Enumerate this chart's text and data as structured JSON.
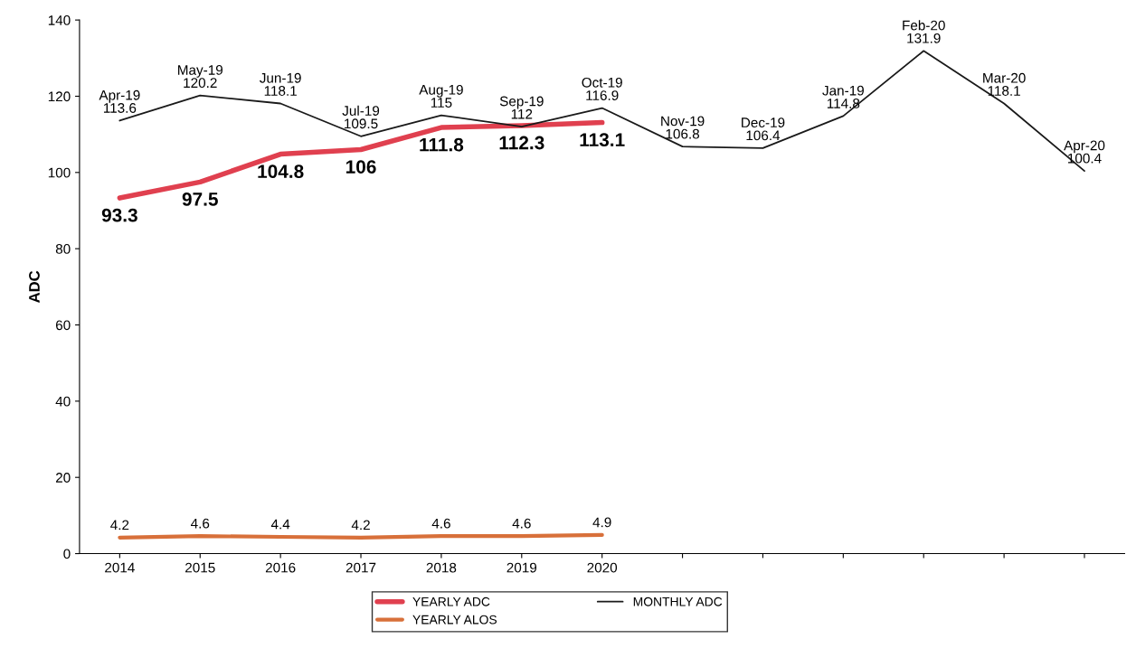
{
  "chart_data": {
    "type": "line",
    "ylabel": "ADC",
    "categories": [
      "2014",
      "2015",
      "2016",
      "2017",
      "2018",
      "2019",
      "2020",
      null,
      null,
      null,
      null,
      null,
      null
    ],
    "series": [
      {
        "name": "YEARLY ADC",
        "color": "#e0404f",
        "values": [
          93.3,
          97.5,
          104.8,
          106,
          111.8,
          112.3,
          113.1,
          null,
          null,
          null,
          null,
          null,
          null
        ],
        "value_labels": [
          "93.3",
          "97.5",
          "104.8",
          "106",
          "111.8",
          "112.3",
          "113.1",
          null,
          null,
          null,
          null,
          null,
          null
        ]
      },
      {
        "name": "YEARLY ALOS",
        "color": "#d8703a",
        "values": [
          4.2,
          4.6,
          4.4,
          4.2,
          4.6,
          4.6,
          4.9,
          null,
          null,
          null,
          null,
          null,
          null
        ],
        "value_labels": [
          "4.2",
          "4.6",
          "4.4",
          "4.2",
          "4.6",
          "4.6",
          "4.9",
          null,
          null,
          null,
          null,
          null,
          null
        ]
      },
      {
        "name": "MONTHLY ADC",
        "color": "#1a1a1a",
        "values": [
          113.6,
          120.2,
          118.1,
          109.5,
          115,
          112,
          116.9,
          106.8,
          106.4,
          114.8,
          131.9,
          118.1,
          100.4
        ],
        "value_labels": [
          "Apr-19\n113.6",
          "May-19\n120.2",
          "Jun-19\n118.1",
          "Jul-19\n109.5",
          "Aug-19\n115",
          "Sep-19\n112",
          "Oct-19\n116.9",
          "Nov-19\n106.8",
          "Dec-19\n106.4",
          "Jan-19\n114.8",
          "Feb-20\n131.9",
          "Mar-20\n118.1",
          "Apr-20\n100.4"
        ]
      }
    ],
    "ylim": [
      0,
      140
    ],
    "yticks": [
      0,
      20,
      40,
      60,
      80,
      100,
      120,
      140
    ],
    "grid": false,
    "legend": "bottom",
    "marker": "none",
    "line_style": "solid"
  }
}
